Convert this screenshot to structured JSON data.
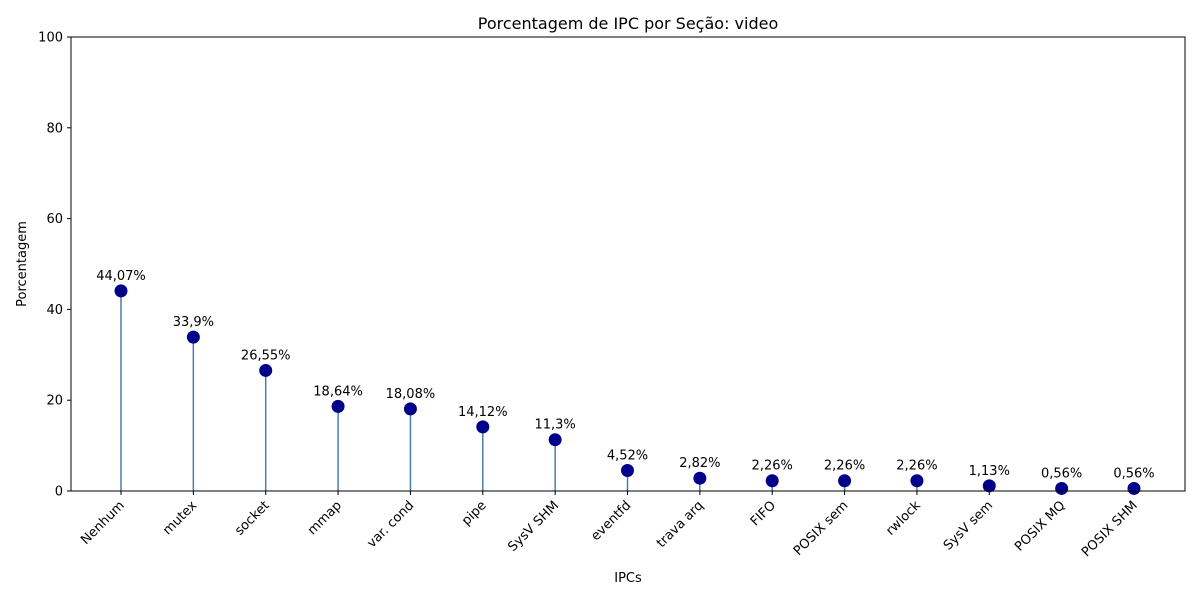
{
  "chart_data": {
    "type": "lollipop",
    "title": "Porcentagem de IPC por Seção: video",
    "xlabel": "IPCs",
    "ylabel": "Porcentagem",
    "ylim": [
      0,
      100
    ],
    "yticks": [
      "0",
      "20",
      "40",
      "60",
      "80",
      "100"
    ],
    "ytick_values": [
      0,
      20,
      40,
      60,
      80,
      100
    ],
    "grid": false,
    "categories": [
      "Nenhum",
      "mutex",
      "socket",
      "mmap",
      "var. cond",
      "pipe",
      "SysV SHM",
      "eventfd",
      "trava arq",
      "FIFO",
      "POSIX sem",
      "rwlock",
      "SysV sem",
      "POSIX MQ",
      "POSIX SHM"
    ],
    "values": [
      44.07,
      33.9,
      26.55,
      18.64,
      18.08,
      14.12,
      11.3,
      4.52,
      2.82,
      2.26,
      2.26,
      2.26,
      1.13,
      0.56,
      0.56
    ],
    "value_labels": [
      "44,07%",
      "33,9%",
      "26,55%",
      "18,64%",
      "18,08%",
      "14,12%",
      "11,3%",
      "4,52%",
      "2,82%",
      "2,26%",
      "2,26%",
      "2,26%",
      "1,13%",
      "0,56%",
      "0,56%"
    ],
    "colors": {
      "marker": "#00008b",
      "stem": "#4a7fa8"
    }
  }
}
